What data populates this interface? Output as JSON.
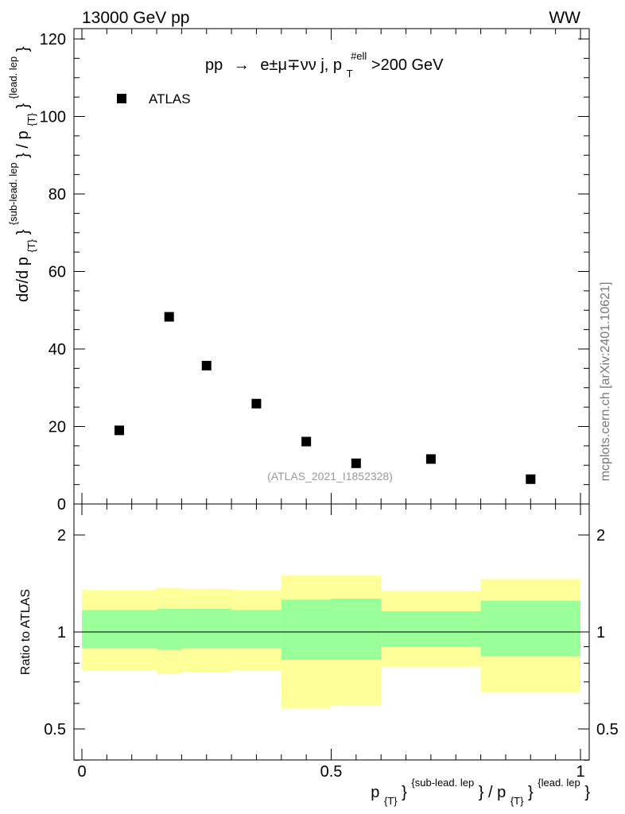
{
  "header": {
    "left": "13000 GeV pp",
    "right": "WW"
  },
  "legend": {
    "label": "ATLAS"
  },
  "process": {
    "prefix": "pp",
    "arrow": "→",
    "final_state": "e±μ∓νν j, p",
    "sub": "T",
    "sup": "#ell",
    "cut": ">200 GeV"
  },
  "analysis_id": "(ATLAS_2021_I1852328)",
  "watermark": "mcplots.cern.ch [arXiv:2401.10621]",
  "colors": {
    "band_outer": "#ffff99",
    "band_inner": "#99ff99",
    "marker": "#000000"
  },
  "chart_data": [
    {
      "type": "scatter",
      "panel": "main",
      "ylabel_parts": [
        "dσ/d p",
        "{T}",
        "}",
        "{sub-lead. lep",
        "} / p",
        "{T}",
        "}",
        "{lead. lep",
        "}"
      ],
      "ylim": [
        0,
        122
      ],
      "xlim": [
        0,
        1
      ],
      "yticks": [
        0,
        20,
        40,
        60,
        80,
        100,
        120
      ],
      "series": [
        {
          "name": "ATLAS",
          "x": [
            0.075,
            0.175,
            0.25,
            0.35,
            0.45,
            0.55,
            0.7,
            0.9
          ],
          "y": [
            19.0,
            48.3,
            35.7,
            25.9,
            16.1,
            10.5,
            11.6,
            6.4
          ]
        }
      ]
    },
    {
      "type": "area",
      "panel": "ratio",
      "ylabel": "Ratio to ATLAS",
      "ylim": [
        0.35,
        2.3
      ],
      "xlim": [
        0,
        1
      ],
      "yticks": [
        0.5,
        1,
        2
      ],
      "ytick_labels": [
        "0.5",
        "1",
        "2"
      ],
      "xticks": [
        0,
        0.5,
        1
      ],
      "xtick_labels": [
        "0",
        "0.5",
        "1"
      ],
      "xlabel_parts": [
        "p",
        "{T}",
        "}",
        "{sub-lead. lep",
        "} / p",
        "{T}",
        "}",
        "{lead. lep",
        "}"
      ],
      "bins": [
        {
          "lo": 0.0,
          "hi": 0.15,
          "inner": [
            0.89,
            1.17
          ],
          "outer": [
            0.76,
            1.35
          ]
        },
        {
          "lo": 0.15,
          "hi": 0.2,
          "inner": [
            0.88,
            1.18
          ],
          "outer": [
            0.74,
            1.37
          ]
        },
        {
          "lo": 0.2,
          "hi": 0.3,
          "inner": [
            0.89,
            1.18
          ],
          "outer": [
            0.75,
            1.36
          ]
        },
        {
          "lo": 0.3,
          "hi": 0.4,
          "inner": [
            0.89,
            1.17
          ],
          "outer": [
            0.76,
            1.35
          ]
        },
        {
          "lo": 0.4,
          "hi": 0.5,
          "inner": [
            0.82,
            1.26
          ],
          "outer": [
            0.58,
            1.5
          ]
        },
        {
          "lo": 0.5,
          "hi": 0.6,
          "inner": [
            0.82,
            1.27
          ],
          "outer": [
            0.59,
            1.5
          ]
        },
        {
          "lo": 0.6,
          "hi": 0.8,
          "inner": [
            0.9,
            1.16
          ],
          "outer": [
            0.78,
            1.34
          ]
        },
        {
          "lo": 0.8,
          "hi": 1.0,
          "inner": [
            0.84,
            1.25
          ],
          "outer": [
            0.65,
            1.46
          ]
        }
      ],
      "reference": 1
    }
  ]
}
